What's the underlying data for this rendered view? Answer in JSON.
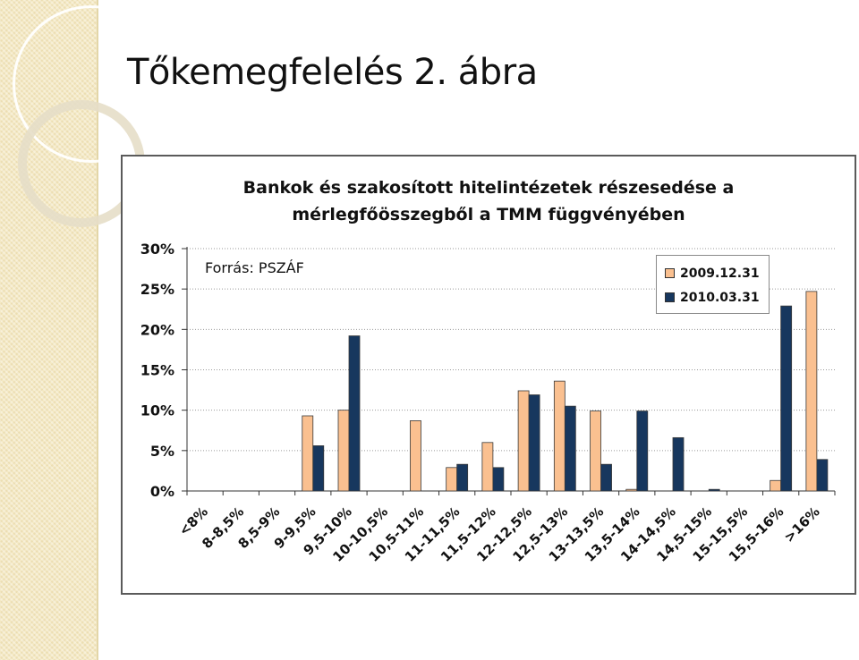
{
  "slide": {
    "title": "Tőkemegfelelés 2. ábra"
  },
  "chart_data": {
    "type": "bar",
    "title": "Bankok és szakosított hitelintézetek részesedése a mérlegfőösszegből a TMM függvényében",
    "title_lines": [
      "Bankok és szakosított hitelintézetek részesedése a",
      "mérlegfőösszegből a TMM függvényében"
    ],
    "annotation": "Forrás: PSZÁF",
    "xlabel": "",
    "ylabel": "",
    "ylim": [
      0,
      30
    ],
    "yticks": [
      0,
      5,
      10,
      15,
      20,
      25,
      30
    ],
    "ytick_labels": [
      "0%",
      "5%",
      "10%",
      "15%",
      "20%",
      "25%",
      "30%"
    ],
    "grid": "horizontal dotted",
    "legend_position": "top-right",
    "categories": [
      "<8%",
      "8-8,5%",
      "8,5-9%",
      "9-9,5%",
      "9,5-10%",
      "10-10,5%",
      "10,5-11%",
      "11-11,5%",
      "11,5-12%",
      "12-12,5%",
      "12,5-13%",
      "13-13,5%",
      "13,5-14%",
      "14-14,5%",
      "14,5-15%",
      "15-15,5%",
      "15,5-16%",
      ">16%"
    ],
    "series": [
      {
        "name": "2009.12.31",
        "color": "#fac090",
        "values": [
          0,
          0,
          0,
          9.3,
          10.0,
          0,
          8.7,
          2.9,
          6.0,
          12.4,
          13.6,
          9.9,
          0.2,
          0,
          0,
          0,
          1.3,
          24.7
        ]
      },
      {
        "name": "2010.03.31",
        "color": "#17375e",
        "values": [
          0,
          0,
          0,
          5.6,
          19.2,
          0,
          0,
          3.3,
          2.9,
          11.9,
          10.5,
          3.3,
          9.9,
          6.6,
          0.2,
          0,
          22.9,
          3.9
        ]
      }
    ]
  }
}
